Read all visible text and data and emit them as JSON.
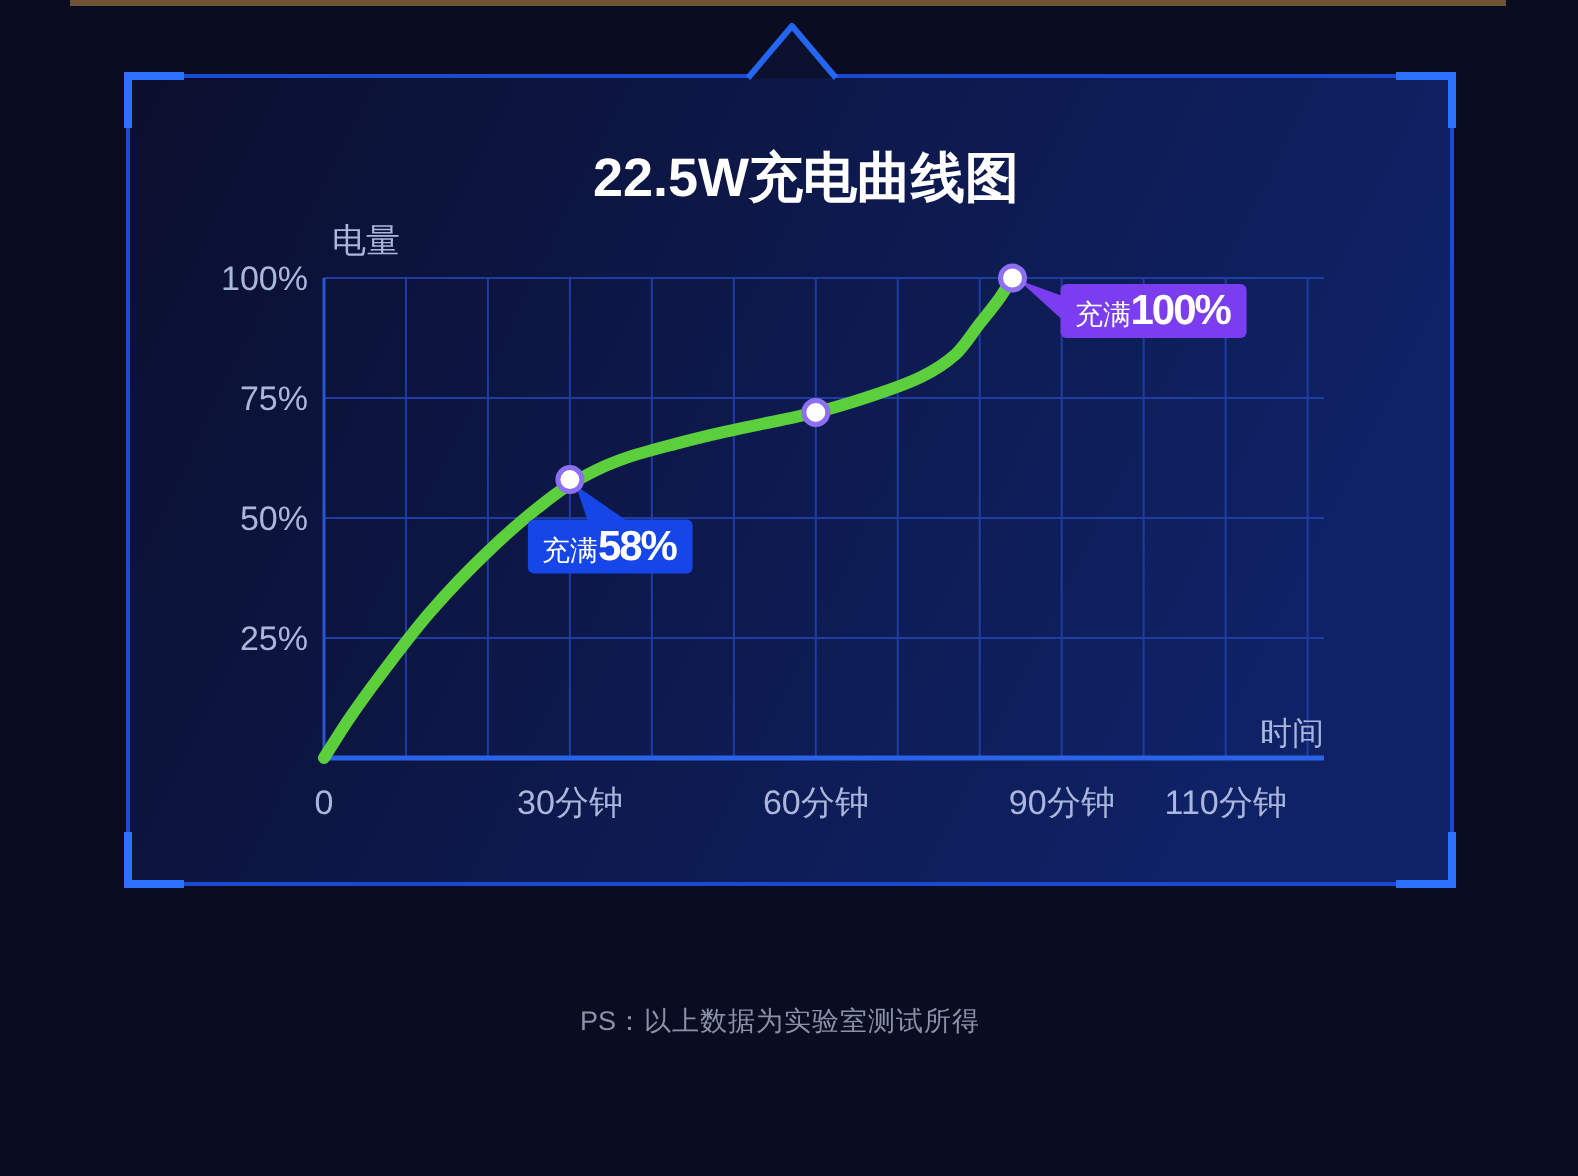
{
  "chart_data": {
    "type": "line",
    "title": "22.5W充电曲线图",
    "xlabel": "时间",
    "ylabel": "电量",
    "series": [
      {
        "color": "#5ccf3c",
        "x": [
          0,
          3,
          7,
          13,
          20,
          26,
          30,
          36,
          43,
          49,
          56,
          60,
          66,
          73,
          77,
          80,
          82.5,
          84
        ],
        "values": [
          0,
          8,
          17.5,
          30.5,
          43,
          52,
          57,
          62,
          65.5,
          68,
          70.5,
          72,
          75,
          79.5,
          84,
          90.5,
          96,
          100
        ]
      },
      {
        "type": "scatter",
        "marker": "circle",
        "color": "#ffffff",
        "x": [
          30,
          60,
          84
        ],
        "values": [
          58,
          72,
          100
        ]
      }
    ],
    "xlim": [
      0,
      122
    ],
    "ylim": [
      0,
      100
    ],
    "xticks": [
      0,
      {
        "value": 10,
        "label": null
      },
      {
        "value": 20,
        "label": null
      },
      {
        "value": 30,
        "label": "30分钟"
      },
      {
        "value": 40,
        "label": null
      },
      {
        "value": 50,
        "label": null
      },
      {
        "value": 60,
        "label": "60分钟"
      },
      {
        "value": 70,
        "label": null
      },
      {
        "value": 80,
        "label": null
      },
      {
        "value": 90,
        "label": "90分钟"
      },
      {
        "value": 100,
        "label": null
      },
      {
        "value": 110,
        "label": "110分钟"
      },
      {
        "value": 120,
        "label": null
      }
    ],
    "yticks": [
      {
        "value": 25,
        "label": "25%"
      },
      {
        "value": 50,
        "label": "50%"
      },
      {
        "value": 75,
        "label": "75%"
      },
      {
        "value": 100,
        "label": "100%"
      }
    ],
    "grid": true,
    "annotations": [
      {
        "text": "充满**58%**",
        "x": 30,
        "y": 58
      },
      {
        "text": "充满**100%**",
        "x": 84,
        "y": 100
      },
      "PS：以上数据为实验室测试所得"
    ]
  }
}
